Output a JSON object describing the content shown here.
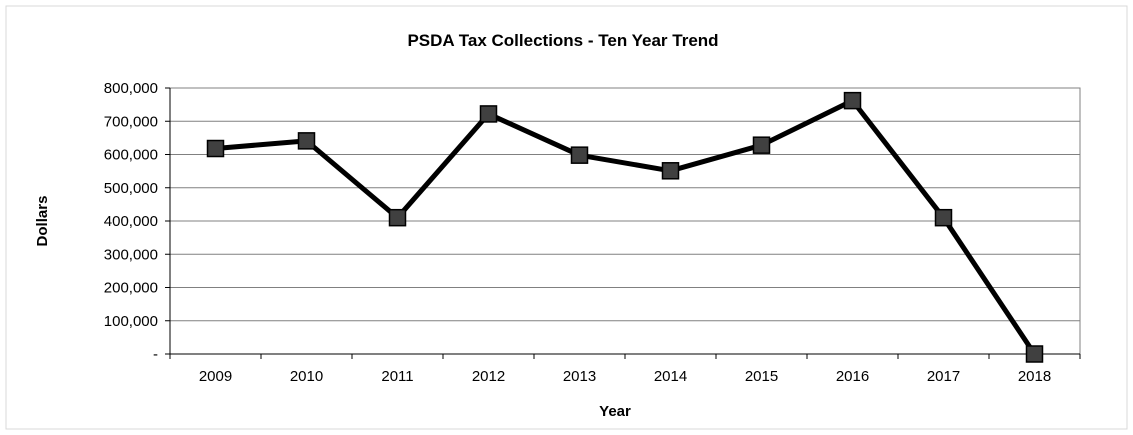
{
  "chart_data": {
    "type": "line",
    "title": "PSDA Tax Collections - Ten Year Trend",
    "xlabel": "Year",
    "ylabel": "Dollars",
    "categories": [
      "2009",
      "2010",
      "2011",
      "2012",
      "2013",
      "2014",
      "2015",
      "2016",
      "2017",
      "2018"
    ],
    "series": [
      {
        "values": [
          618000,
          641000,
          410000,
          722000,
          598000,
          551000,
          628000,
          762000,
          410000,
          0
        ]
      }
    ],
    "ylim": [
      0,
      800000
    ],
    "y_ticks": [
      {
        "value": 0,
        "label": "-"
      },
      {
        "value": 100000,
        "label": "100,000"
      },
      {
        "value": 200000,
        "label": "200,000"
      },
      {
        "value": 300000,
        "label": "300,000"
      },
      {
        "value": 400000,
        "label": "400,000"
      },
      {
        "value": 500000,
        "label": "500,000"
      },
      {
        "value": 600000,
        "label": "600,000"
      },
      {
        "value": 700000,
        "label": "700,000"
      },
      {
        "value": 800000,
        "label": "800,000"
      }
    ],
    "grid": true,
    "legend": "none",
    "colors": {
      "line": "#000000",
      "marker_fill": "#404040",
      "marker_stroke": "#000000",
      "grid": "#808080",
      "frame": "#d9d9d9"
    }
  }
}
